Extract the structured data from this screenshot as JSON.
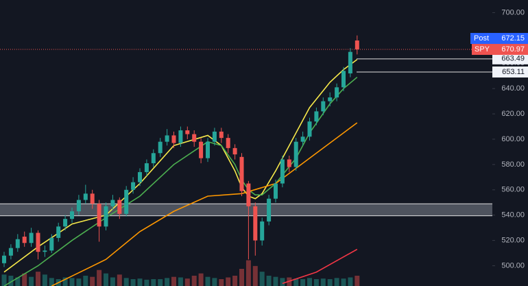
{
  "chart_data": {
    "type": "candlestick",
    "symbol": "SPY",
    "ylim": [
      484,
      710
    ],
    "yticks": [
      {
        "value": 500,
        "label": "500.00"
      },
      {
        "value": 520,
        "label": "520.00"
      },
      {
        "value": 540,
        "label": "540.00"
      },
      {
        "value": 560,
        "label": "560.00"
      },
      {
        "value": 580,
        "label": "580.00"
      },
      {
        "value": 600,
        "label": "600.00"
      },
      {
        "value": 620,
        "label": "620.00"
      },
      {
        "value": 640,
        "label": "640.00"
      },
      {
        "value": 660,
        "label": "660.00"
      },
      {
        "value": 680,
        "label": "680.00"
      },
      {
        "value": 700,
        "label": "700.00"
      }
    ],
    "up_color": "#26a69a",
    "down_color": "#ef5350",
    "open": [
      502,
      508,
      514,
      523,
      518,
      526,
      511,
      512,
      522,
      531,
      537,
      543,
      552,
      557,
      549,
      531,
      547,
      552,
      541,
      560,
      566,
      574,
      581,
      589,
      598,
      603,
      597,
      607,
      604,
      598,
      585,
      598,
      606,
      601,
      593,
      586,
      565,
      547,
      520,
      535,
      553,
      565,
      584,
      578,
      598,
      602,
      614,
      622,
      630,
      633,
      641,
      652,
      678
    ],
    "high": [
      511,
      517,
      525,
      527,
      530,
      528,
      516,
      525,
      534,
      540,
      546,
      556,
      564,
      560,
      552,
      550,
      556,
      554,
      563,
      570,
      577,
      584,
      592,
      601,
      608,
      606,
      610,
      610,
      607,
      601,
      601,
      609,
      609,
      604,
      596,
      589,
      567,
      550,
      538,
      556,
      568,
      587,
      587,
      601,
      606,
      617,
      625,
      633,
      637,
      644,
      657,
      672,
      682
    ],
    "low": [
      499,
      505,
      511,
      515,
      515,
      505,
      507,
      510,
      519,
      528,
      534,
      540,
      549,
      545,
      519,
      528,
      544,
      537,
      539,
      557,
      563,
      571,
      578,
      586,
      595,
      593,
      594,
      600,
      594,
      581,
      582,
      595,
      597,
      589,
      584,
      555,
      505,
      508,
      516,
      532,
      550,
      562,
      574,
      575,
      595,
      599,
      611,
      619,
      626,
      630,
      638,
      649,
      667
    ],
    "close": [
      508,
      514,
      521,
      518,
      526,
      511,
      512,
      522,
      531,
      537,
      543,
      552,
      557,
      549,
      531,
      547,
      552,
      541,
      560,
      566,
      574,
      581,
      589,
      598,
      603,
      597,
      607,
      604,
      598,
      585,
      598,
      606,
      601,
      593,
      588,
      559,
      547,
      520,
      535,
      553,
      565,
      584,
      578,
      598,
      602,
      614,
      622,
      630,
      633,
      641,
      654,
      669,
      671
    ],
    "volume": [
      20,
      18,
      15,
      22,
      16,
      25,
      20,
      14,
      12,
      15,
      14,
      13,
      18,
      16,
      28,
      22,
      15,
      20,
      14,
      12,
      13,
      11,
      12,
      12,
      14,
      16,
      15,
      13,
      18,
      22,
      16,
      14,
      12,
      15,
      18,
      30,
      45,
      35,
      25,
      18,
      16,
      14,
      15,
      13,
      12,
      14,
      12,
      13,
      12,
      14,
      13,
      15,
      18
    ],
    "vlim": [
      0,
      120
    ],
    "moving_averages": [
      {
        "color": "#f7e94a",
        "x": [
          0,
          5,
          10,
          15,
          20,
          25,
          30,
          32,
          34,
          35,
          36,
          37,
          38,
          40,
          43,
          45,
          48,
          50,
          52
        ],
        "values": [
          495,
          515,
          533,
          540,
          565,
          595,
          603,
          595,
          575,
          562,
          555,
          553,
          557,
          575,
          605,
          625,
          645,
          655,
          663
        ]
      },
      {
        "color": "#4caf50",
        "x": [
          0,
          5,
          10,
          15,
          20,
          25,
          30,
          32,
          34,
          35,
          36,
          37,
          38,
          40,
          43,
          45,
          48,
          50,
          52
        ],
        "values": [
          484,
          500,
          520,
          538,
          555,
          580,
          598,
          595,
          580,
          568,
          560,
          556,
          556,
          565,
          585,
          605,
          628,
          640,
          649
        ]
      },
      {
        "color": "#ff9800",
        "x": [
          7,
          15,
          20,
          25,
          30,
          35,
          40,
          45,
          50,
          52
        ],
        "values": [
          484,
          505,
          527,
          543,
          555,
          557,
          565,
          585,
          605,
          613
        ]
      },
      {
        "color": "#f23645",
        "x": [
          41,
          46,
          52
        ],
        "values": [
          486,
          495,
          513
        ]
      }
    ],
    "zone": [
      539.5,
      549
    ],
    "levels": [
      663.49,
      653.11
    ],
    "last": {
      "name": "SPY",
      "value": 670.97
    },
    "post": {
      "name": "Post",
      "value": 672.15
    }
  }
}
